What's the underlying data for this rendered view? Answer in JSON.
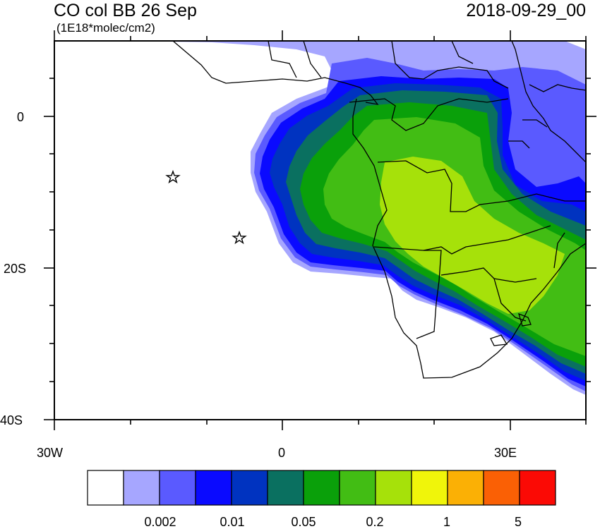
{
  "header": {
    "title": "CO col BB 26 Sep",
    "units": "(1E18*molec/cm2)",
    "datetime": "2018-09-29_00"
  },
  "axes": {
    "x_ticks": [
      "30W",
      "0",
      "30E"
    ],
    "y_ticks": [
      "0",
      "20S",
      "40S"
    ],
    "lon_range": [
      -30,
      40
    ],
    "lat_range": [
      -40,
      10
    ]
  },
  "legend": {
    "labels": [
      "0.002",
      "0.01",
      "0.05",
      "0.2",
      "1",
      "5"
    ],
    "colors": [
      "#ffffff",
      "#a6a6ff",
      "#5a5aff",
      "#0a0aff",
      "#0033c0",
      "#0a7060",
      "#0aa00a",
      "#42bd14",
      "#a6e10a",
      "#f0f50a",
      "#fbb005",
      "#fa6005",
      "#fb0a05"
    ]
  },
  "markers": [
    {
      "name": "star",
      "lon": -14.4,
      "lat": -8.0
    },
    {
      "name": "star",
      "lon": -5.7,
      "lat": -15.9
    }
  ],
  "colors": {
    "land_outline": "#000000",
    "frame": "#000000"
  }
}
